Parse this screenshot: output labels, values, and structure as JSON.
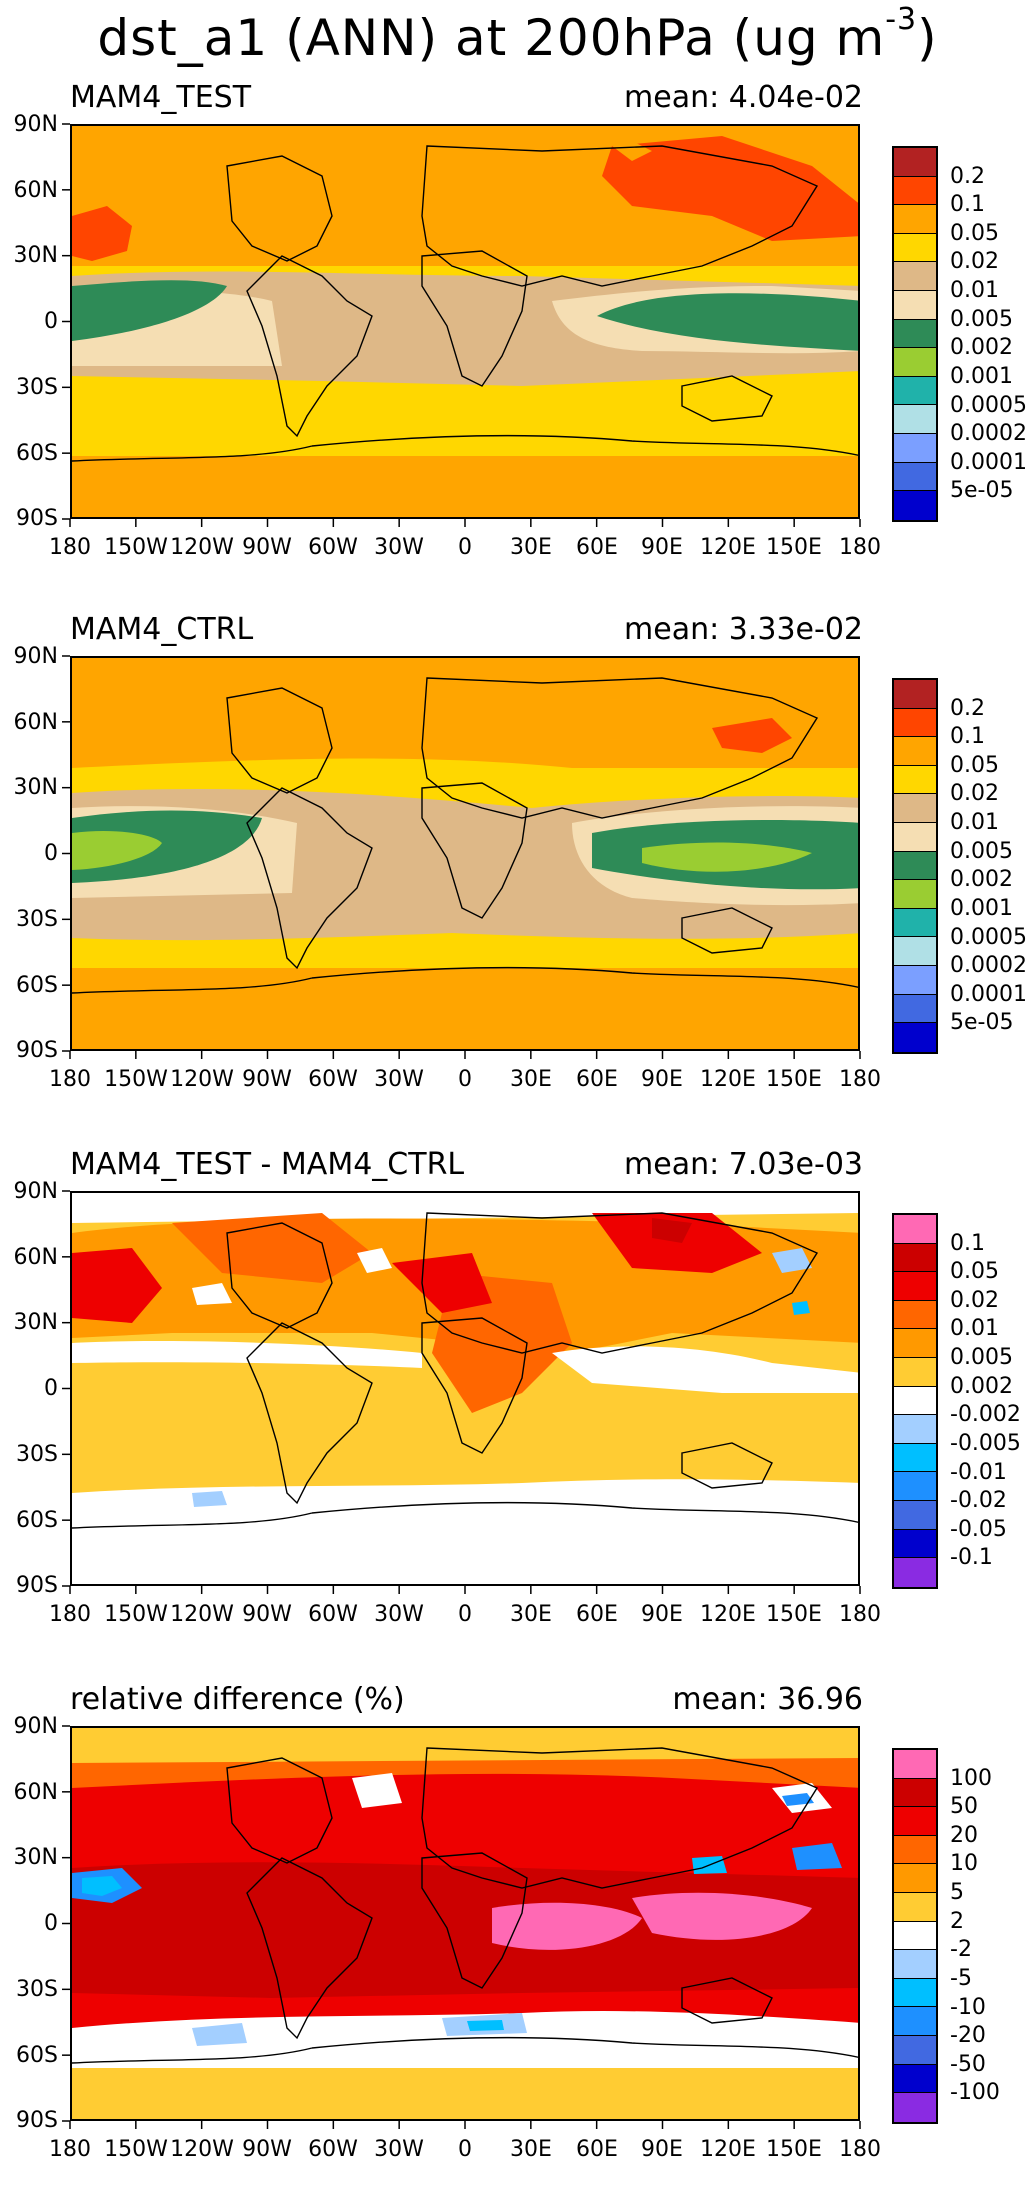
{
  "figure": {
    "title_main": "dst_a1 (ANN) at 200hPa (ug m",
    "title_sup": "-3",
    "title_end": ")"
  },
  "axes": {
    "lat_labels": [
      "90N",
      "60N",
      "30N",
      "0",
      "30S",
      "60S",
      "90S"
    ],
    "lon_labels": [
      "180",
      "150W",
      "120W",
      "90W",
      "60W",
      "30W",
      "0",
      "30E",
      "60E",
      "90E",
      "120E",
      "150E",
      "180"
    ]
  },
  "panels": [
    {
      "title": "MAM4_TEST",
      "mean": "mean: 4.04e-02",
      "levels": [
        "0.2",
        "0.1",
        "0.05",
        "0.02",
        "0.01",
        "0.005",
        "0.002",
        "0.001",
        "0.0005",
        "0.0002",
        "0.0001",
        "5e-05"
      ],
      "colors": [
        "#b22222",
        "#ff4500",
        "#ffa500",
        "#ffd700",
        "#deb887",
        "#f5deb3",
        "#2e8b57",
        "#9acd32",
        "#20b2aa",
        "#b0e0e6",
        "#7b9fff",
        "#4169e1",
        "#0000cd"
      ]
    },
    {
      "title": "MAM4_CTRL",
      "mean": "mean: 3.33e-02",
      "levels": [
        "0.2",
        "0.1",
        "0.05",
        "0.02",
        "0.01",
        "0.005",
        "0.002",
        "0.001",
        "0.0005",
        "0.0002",
        "0.0001",
        "5e-05"
      ],
      "colors": [
        "#b22222",
        "#ff4500",
        "#ffa500",
        "#ffd700",
        "#deb887",
        "#f5deb3",
        "#2e8b57",
        "#9acd32",
        "#20b2aa",
        "#b0e0e6",
        "#7b9fff",
        "#4169e1",
        "#0000cd"
      ]
    },
    {
      "title": "MAM4_TEST - MAM4_CTRL",
      "mean": "mean: 7.03e-03",
      "levels": [
        "0.1",
        "0.05",
        "0.02",
        "0.01",
        "0.005",
        "0.002",
        "-0.002",
        "-0.005",
        "-0.01",
        "-0.02",
        "-0.05",
        "-0.1"
      ],
      "colors": [
        "#ff69b4",
        "#cc0000",
        "#ee0000",
        "#ff6600",
        "#ff9900",
        "#ffcc33",
        "#ffffff",
        "#a3cfff",
        "#00bfff",
        "#1e90ff",
        "#4169e1",
        "#0000cd",
        "#8a2be2"
      ]
    },
    {
      "title": "relative difference (%)",
      "mean": "mean: 36.96",
      "levels": [
        "100",
        "50",
        "20",
        "10",
        "5",
        "2",
        "-2",
        "-5",
        "-10",
        "-20",
        "-50",
        "-100"
      ],
      "colors": [
        "#ff69b4",
        "#cc0000",
        "#ee0000",
        "#ff6600",
        "#ff9900",
        "#ffcc33",
        "#ffffff",
        "#a3cfff",
        "#00bfff",
        "#1e90ff",
        "#4169e1",
        "#0000cd",
        "#8a2be2"
      ]
    }
  ]
}
